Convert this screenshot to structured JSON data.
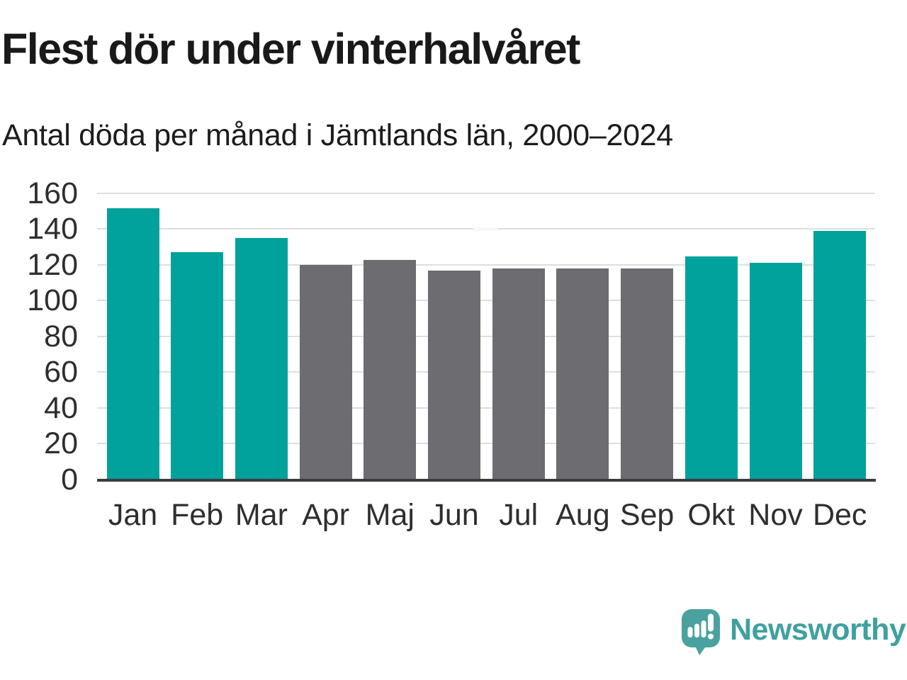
{
  "header": {
    "title": "Flest dör under vinterhalvåret",
    "subtitle": "Antal döda per månad i Jämtlands län, 2000–2024"
  },
  "chart_data": {
    "type": "bar",
    "title": "Flest dör under vinterhalvåret",
    "subtitle": "Antal döda per månad i Jämtlands län, 2000–2024",
    "categories": [
      "Jan",
      "Feb",
      "Mar",
      "Apr",
      "Maj",
      "Jun",
      "Jul",
      "Aug",
      "Sep",
      "Okt",
      "Nov",
      "Dec"
    ],
    "values": [
      151.5,
      127,
      135,
      120,
      122.5,
      116.5,
      118,
      118,
      118,
      124.5,
      121,
      139
    ],
    "groups": [
      "vinter",
      "vinter",
      "vinter",
      "sommar",
      "sommar",
      "sommar",
      "sommar",
      "sommar",
      "sommar",
      "vinter",
      "vinter",
      "vinter"
    ],
    "bar_colors": [
      "#00a29b",
      "#00a29b",
      "#00a29b",
      "#6c6c71",
      "#6c6c71",
      "#6c6c71",
      "#6c6c71",
      "#6c6c71",
      "#6c6c71",
      "#00a29b",
      "#00a29b",
      "#00a29b"
    ],
    "xlabel": "",
    "ylabel": "",
    "ylim": [
      0,
      160
    ],
    "yticks": [
      0,
      20,
      40,
      60,
      80,
      100,
      120,
      140,
      160
    ],
    "grid": true,
    "legend": false
  },
  "colors": {
    "winter_bar": "#00a29b",
    "summer_bar": "#6c6c71",
    "gridline": "#dedede",
    "axis_line": "#3c3c3c",
    "heading_text": "#191919",
    "tick_text": "#2e2e2e",
    "brand_teal": "#3fa0a0",
    "logo_bubble": "#49a2a0"
  },
  "footer": {
    "brand": "Newsworthy",
    "logo_icon": "speech-bubble-bar-chart-icon"
  }
}
